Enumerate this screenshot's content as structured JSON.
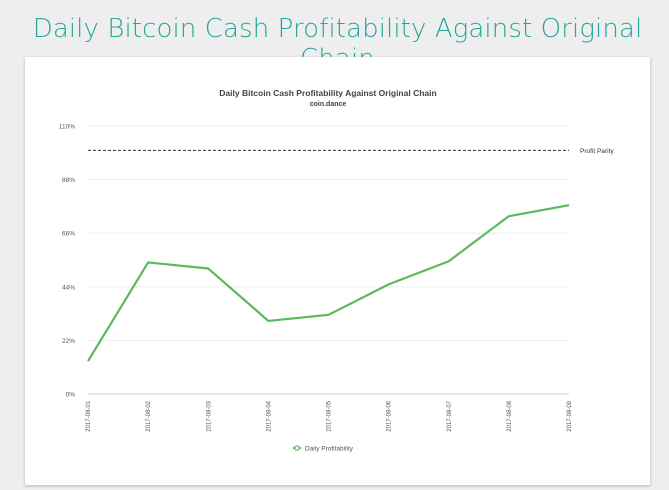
{
  "page": {
    "heading": "Daily Bitcoin Cash Profitability Against Original Chain"
  },
  "chart_data": {
    "type": "line",
    "title": "Daily Bitcoin Cash Profitability Against Original Chain",
    "subtitle": "coin.dance",
    "x": [
      "2017-08-01",
      "2017-08-02",
      "2017-08-03",
      "2017-08-04",
      "2017-08-05",
      "2017-08-06",
      "2017-08-07",
      "2017-08-08",
      "2017-08-09"
    ],
    "series": [
      {
        "name": "Daily Profitability",
        "values": [
          13.5,
          54,
          51.5,
          30,
          32.5,
          45,
          54.5,
          73,
          77.5
        ],
        "color": "#5cb85c"
      }
    ],
    "reference_line": {
      "label": "Profit Parity",
      "value": 100
    },
    "yticks": [
      "110%",
      "88%",
      "66%",
      "44%",
      "22%",
      "0%"
    ],
    "ylim": [
      0,
      110
    ],
    "grid": true,
    "legend": "bottom"
  }
}
